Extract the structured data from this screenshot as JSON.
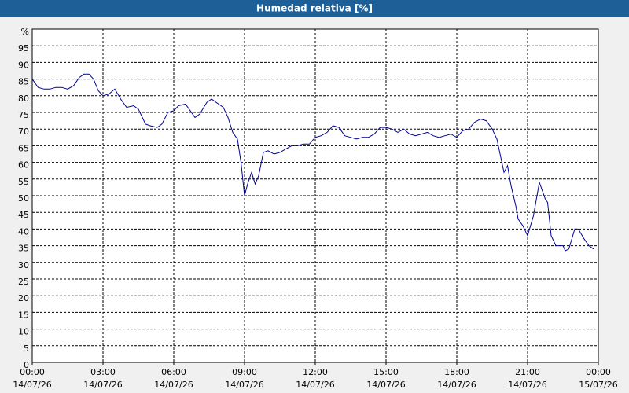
{
  "chart_data": {
    "type": "line",
    "title": "Humedad relativa [%]",
    "x": [
      0,
      0.25,
      0.5,
      0.75,
      1,
      1.25,
      1.5,
      1.75,
      2,
      2.2,
      2.4,
      2.6,
      2.8,
      3,
      3.25,
      3.5,
      3.75,
      4,
      4.3,
      4.5,
      4.8,
      5,
      5.3,
      5.5,
      5.75,
      6,
      6.2,
      6.5,
      6.7,
      6.9,
      7.1,
      7.4,
      7.6,
      7.9,
      8.1,
      8.3,
      8.5,
      8.7,
      8.85,
      9,
      9.15,
      9.3,
      9.45,
      9.6,
      9.8,
      10,
      10.25,
      10.5,
      10.75,
      11,
      11.25,
      11.5,
      11.75,
      12,
      12.25,
      12.5,
      12.75,
      13,
      13.25,
      13.5,
      13.75,
      14,
      14.25,
      14.5,
      14.75,
      15,
      15.25,
      15.5,
      15.75,
      16,
      16.25,
      16.5,
      16.75,
      17,
      17.25,
      17.5,
      17.75,
      18,
      18.25,
      18.5,
      18.75,
      19,
      19.25,
      19.5,
      19.7,
      20,
      20.15,
      20.3,
      20.5,
      20.6,
      20.8,
      21,
      21.25,
      21.5,
      21.75,
      21.85,
      22,
      22.2,
      22.5,
      22.6,
      22.75,
      23,
      23.15,
      23.4,
      23.6,
      23.8
    ],
    "series": [
      {
        "color": "#000090",
        "values": [
          85,
          82.5,
          82,
          82,
          82.5,
          82.5,
          82,
          83,
          85.5,
          86.5,
          86.5,
          85,
          81.5,
          80,
          80.5,
          82,
          79,
          76.5,
          77,
          76,
          71.5,
          71,
          70.5,
          71.5,
          75,
          75.5,
          77,
          77.5,
          75.5,
          73.5,
          74.5,
          78,
          79,
          77.5,
          76.5,
          73.5,
          69,
          67,
          60,
          50,
          54,
          57,
          53.5,
          56,
          63,
          63.5,
          62.5,
          63,
          64,
          65,
          65,
          65.5,
          65.5,
          67.5,
          68,
          69,
          71,
          70.5,
          68,
          67.5,
          67,
          67.5,
          67.5,
          68.5,
          70.5,
          70.5,
          70,
          69,
          70,
          68.5,
          68,
          68.5,
          69,
          68,
          67.5,
          68,
          68.5,
          67.5,
          69.5,
          70,
          72,
          73,
          72.5,
          70,
          67,
          57,
          59,
          53,
          47,
          43,
          41,
          38,
          44,
          54,
          49,
          48,
          38,
          35,
          35,
          33.5,
          34,
          40,
          40,
          37,
          35,
          34
        ]
      }
    ],
    "xlim": [
      0,
      24
    ],
    "xticks": [
      {
        "value": 0,
        "label": "00:00",
        "sublabel": "14/07/26"
      },
      {
        "value": 3,
        "label": "03:00",
        "sublabel": "14/07/26"
      },
      {
        "value": 6,
        "label": "06:00",
        "sublabel": "14/07/26"
      },
      {
        "value": 9,
        "label": "09:00",
        "sublabel": "14/07/26"
      },
      {
        "value": 12,
        "label": "12:00",
        "sublabel": "14/07/26"
      },
      {
        "value": 15,
        "label": "15:00",
        "sublabel": "14/07/26"
      },
      {
        "value": 18,
        "label": "18:00",
        "sublabel": "14/07/26"
      },
      {
        "value": 21,
        "label": "21:00",
        "sublabel": "14/07/26"
      },
      {
        "value": 24,
        "label": "00:00",
        "sublabel": "15/07/26"
      }
    ],
    "ylim": [
      0,
      100
    ],
    "yticks": [
      0,
      5,
      10,
      15,
      20,
      25,
      30,
      35,
      40,
      45,
      50,
      55,
      60,
      65,
      70,
      75,
      80,
      85,
      90,
      95,
      {
        "value": 100,
        "label": "%"
      }
    ],
    "grid": true
  }
}
